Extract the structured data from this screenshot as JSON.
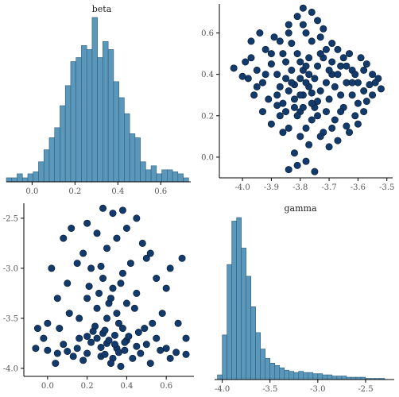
{
  "chart_data": [
    {
      "id": "beta-hist",
      "type": "histogram",
      "title": "beta",
      "xlim": [
        -0.12,
        0.74
      ],
      "x_ticks": [
        0.0,
        0.2,
        0.4,
        0.6
      ],
      "x_tick_labels": [
        "0.0",
        "0.2",
        "0.4",
        "0.6"
      ],
      "bin_start": -0.12,
      "bin_width": 0.025,
      "counts": [
        2,
        2,
        4,
        2,
        4,
        5,
        10,
        16,
        22,
        27,
        38,
        48,
        60,
        62,
        68,
        66,
        82,
        62,
        70,
        66,
        50,
        42,
        34,
        24,
        22,
        10,
        6,
        8,
        4,
        6,
        6,
        5,
        4,
        2
      ]
    },
    {
      "id": "beta-gamma-scatter",
      "type": "scatter",
      "x_variable": "gamma",
      "y_variable": "beta",
      "xlim": [
        -4.08,
        -3.48
      ],
      "ylim": [
        -0.1,
        0.74
      ],
      "x_ticks": [
        -4.0,
        -3.9,
        -3.8,
        -3.7,
        -3.6,
        -3.5
      ],
      "x_tick_labels": [
        "-4.0",
        "-3.9",
        "-3.8",
        "-3.7",
        "-3.6",
        "-3.5"
      ],
      "y_ticks": [
        0.0,
        0.2,
        0.4,
        0.6
      ],
      "y_tick_labels": [
        "0.0",
        "0.2",
        "0.4",
        "0.6"
      ],
      "points": [
        [
          -3.82,
          0.35
        ],
        [
          -3.76,
          0.31
        ],
        [
          -3.79,
          0.42
        ],
        [
          -3.74,
          0.27
        ],
        [
          -3.85,
          0.38
        ],
        [
          -3.71,
          0.36
        ],
        [
          -3.8,
          0.22
        ],
        [
          -3.77,
          0.48
        ],
        [
          -3.88,
          0.3
        ],
        [
          -3.69,
          0.4
        ],
        [
          -3.83,
          0.55
        ],
        [
          -3.78,
          0.6
        ],
        [
          -3.81,
          0.68
        ],
        [
          -3.79,
          0.72
        ],
        [
          -3.76,
          0.7
        ],
        [
          -3.84,
          0.64
        ],
        [
          -3.73,
          0.58
        ],
        [
          -3.86,
          0.5
        ],
        [
          -3.9,
          0.45
        ],
        [
          -3.95,
          0.42
        ],
        [
          -3.98,
          0.38
        ],
        [
          -4.03,
          0.43
        ],
        [
          -3.99,
          0.46
        ],
        [
          -3.93,
          0.36
        ],
        [
          -3.91,
          0.28
        ],
        [
          -3.96,
          0.3
        ],
        [
          -3.87,
          0.2
        ],
        [
          -3.84,
          0.14
        ],
        [
          -3.8,
          0.1
        ],
        [
          -3.77,
          0.06
        ],
        [
          -3.82,
          0.02
        ],
        [
          -3.78,
          -0.02
        ],
        [
          -3.81,
          -0.04
        ],
        [
          -3.75,
          -0.07
        ],
        [
          -3.84,
          -0.06
        ],
        [
          -3.72,
          0.12
        ],
        [
          -3.68,
          0.18
        ],
        [
          -3.65,
          0.24
        ],
        [
          -3.62,
          0.3
        ],
        [
          -3.6,
          0.36
        ],
        [
          -3.58,
          0.42
        ],
        [
          -3.55,
          0.4
        ],
        [
          -3.52,
          0.33
        ],
        [
          -3.53,
          0.38
        ],
        [
          -3.57,
          0.27
        ],
        [
          -3.61,
          0.2
        ],
        [
          -3.64,
          0.15
        ],
        [
          -3.67,
          0.08
        ],
        [
          -3.7,
          0.05
        ],
        [
          -3.66,
          0.44
        ],
        [
          -3.63,
          0.5
        ],
        [
          -3.69,
          0.55
        ],
        [
          -3.72,
          0.62
        ],
        [
          -3.74,
          0.66
        ],
        [
          -3.71,
          0.52
        ],
        [
          -3.89,
          0.58
        ],
        [
          -3.92,
          0.52
        ],
        [
          -3.94,
          0.6
        ],
        [
          -3.97,
          0.56
        ],
        [
          -3.9,
          0.16
        ],
        [
          -3.93,
          0.22
        ],
        [
          -3.86,
          0.26
        ],
        [
          -3.88,
          0.4
        ],
        [
          -3.85,
          0.46
        ],
        [
          -3.81,
          0.5
        ],
        [
          -3.78,
          0.44
        ],
        [
          -3.75,
          0.38
        ],
        [
          -3.73,
          0.32
        ],
        [
          -3.7,
          0.28
        ],
        [
          -3.68,
          0.34
        ],
        [
          -3.66,
          0.3
        ],
        [
          -3.64,
          0.36
        ],
        [
          -3.62,
          0.42
        ],
        [
          -3.6,
          0.26
        ],
        [
          -3.58,
          0.32
        ],
        [
          -3.56,
          0.35
        ],
        [
          -3.76,
          0.18
        ],
        [
          -3.79,
          0.24
        ],
        [
          -3.82,
          0.28
        ],
        [
          -3.84,
          0.32
        ],
        [
          -3.87,
          0.34
        ],
        [
          -3.83,
          0.42
        ],
        [
          -3.8,
          0.38
        ],
        [
          -3.77,
          0.34
        ],
        [
          -3.74,
          0.44
        ],
        [
          -3.72,
          0.48
        ],
        [
          -3.69,
          0.46
        ],
        [
          -3.67,
          0.4
        ],
        [
          -3.65,
          0.48
        ],
        [
          -3.62,
          0.36
        ],
        [
          -3.79,
          0.3
        ],
        [
          -3.81,
          0.2
        ],
        [
          -3.75,
          0.24
        ],
        [
          -3.71,
          0.22
        ],
        [
          -3.69,
          0.14
        ],
        [
          -3.73,
          0.1
        ],
        [
          -3.86,
          0.12
        ],
        [
          -3.92,
          0.4
        ],
        [
          -3.95,
          0.34
        ],
        [
          -4.0,
          0.39
        ],
        [
          -3.97,
          0.48
        ],
        [
          -3.9,
          0.5
        ],
        [
          -3.87,
          0.56
        ],
        [
          -3.84,
          0.6
        ],
        [
          -3.79,
          0.64
        ],
        [
          -3.76,
          0.56
        ],
        [
          -3.73,
          0.5
        ],
        [
          -3.7,
          0.42
        ],
        [
          -3.67,
          0.52
        ],
        [
          -3.64,
          0.44
        ],
        [
          -3.61,
          0.4
        ],
        [
          -3.59,
          0.48
        ],
        [
          -3.57,
          0.45
        ],
        [
          -3.54,
          0.36
        ],
        [
          -3.55,
          0.3
        ],
        [
          -3.58,
          0.22
        ],
        [
          -3.6,
          0.16
        ],
        [
          -3.63,
          0.12
        ],
        [
          -3.66,
          0.22
        ],
        [
          -3.78,
          0.14
        ],
        [
          -3.8,
          0.3
        ],
        [
          -3.78,
          0.36
        ],
        [
          -3.76,
          0.26
        ],
        [
          -3.74,
          0.2
        ],
        [
          -3.82,
          0.24
        ],
        [
          -3.85,
          0.22
        ],
        [
          -3.88,
          0.25
        ],
        [
          -3.83,
          0.36
        ],
        [
          -3.8,
          0.46
        ],
        [
          -3.77,
          0.4
        ]
      ]
    },
    {
      "id": "gamma-beta-scatter",
      "type": "scatter",
      "x_variable": "beta",
      "y_variable": "gamma",
      "xlim": [
        -0.12,
        0.74
      ],
      "ylim": [
        -4.08,
        -2.35
      ],
      "x_ticks": [
        0.0,
        0.2,
        0.4,
        0.6
      ],
      "x_tick_labels": [
        "0.0",
        "0.2",
        "0.4",
        "0.6"
      ],
      "y_ticks": [
        -4.0,
        -3.5,
        -3.0,
        -2.5
      ],
      "y_tick_labels": [
        "-4.0",
        "-3.5",
        "-3.0",
        "-2.5"
      ],
      "points": [
        [
          0.3,
          -3.75
        ],
        [
          0.35,
          -3.8
        ],
        [
          0.25,
          -3.7
        ],
        [
          0.4,
          -3.72
        ],
        [
          0.2,
          -3.85
        ],
        [
          0.45,
          -3.78
        ],
        [
          0.33,
          -3.9
        ],
        [
          0.28,
          -3.65
        ],
        [
          0.38,
          -3.6
        ],
        [
          0.22,
          -3.74
        ],
        [
          0.15,
          -3.8
        ],
        [
          0.5,
          -3.76
        ],
        [
          0.1,
          -3.83
        ],
        [
          0.55,
          -3.7
        ],
        [
          0.05,
          -3.85
        ],
        [
          0.6,
          -3.8
        ],
        [
          0.0,
          -3.82
        ],
        [
          0.65,
          -3.84
        ],
        [
          0.7,
          -3.86
        ],
        [
          -0.06,
          -3.8
        ],
        [
          0.3,
          -3.5
        ],
        [
          0.35,
          -3.45
        ],
        [
          0.25,
          -3.4
        ],
        [
          0.4,
          -3.35
        ],
        [
          0.2,
          -3.3
        ],
        [
          0.45,
          -3.25
        ],
        [
          0.33,
          -3.2
        ],
        [
          0.28,
          -3.1
        ],
        [
          0.38,
          -3.05
        ],
        [
          0.22,
          -3.0
        ],
        [
          0.15,
          -2.95
        ],
        [
          0.5,
          -2.9
        ],
        [
          0.1,
          -3.15
        ],
        [
          0.55,
          -3.1
        ],
        [
          0.05,
          -3.3
        ],
        [
          0.6,
          -3.2
        ],
        [
          0.3,
          -2.8
        ],
        [
          0.35,
          -2.7
        ],
        [
          0.25,
          -2.65
        ],
        [
          0.4,
          -2.6
        ],
        [
          0.2,
          -2.55
        ],
        [
          0.45,
          -2.5
        ],
        [
          0.33,
          -2.45
        ],
        [
          0.28,
          -2.4
        ],
        [
          0.38,
          -2.42
        ],
        [
          0.12,
          -2.6
        ],
        [
          0.48,
          -2.75
        ],
        [
          0.52,
          -2.85
        ],
        [
          0.18,
          -2.85
        ],
        [
          0.08,
          -2.7
        ],
        [
          0.02,
          -3.0
        ],
        [
          0.62,
          -3.0
        ],
        [
          0.68,
          -2.9
        ],
        [
          -0.02,
          -3.7
        ],
        [
          -0.05,
          -3.6
        ],
        [
          0.0,
          -3.55
        ],
        [
          0.58,
          -3.45
        ],
        [
          0.66,
          -3.55
        ],
        [
          0.7,
          -3.7
        ],
        [
          0.42,
          -2.95
        ],
        [
          0.26,
          -3.25
        ],
        [
          0.31,
          -3.35
        ],
        [
          0.36,
          -3.55
        ],
        [
          0.24,
          -3.58
        ],
        [
          0.29,
          -3.62
        ],
        [
          0.34,
          -3.67
        ],
        [
          0.39,
          -3.82
        ],
        [
          0.27,
          -3.88
        ],
        [
          0.32,
          -3.95
        ],
        [
          0.37,
          -3.98
        ],
        [
          0.18,
          -3.92
        ],
        [
          0.43,
          -3.9
        ],
        [
          0.47,
          -3.85
        ],
        [
          0.13,
          -3.88
        ],
        [
          0.08,
          -3.76
        ],
        [
          0.57,
          -3.82
        ],
        [
          0.62,
          -3.9
        ],
        [
          0.04,
          -3.95
        ],
        [
          0.52,
          -3.95
        ],
        [
          0.2,
          -3.68
        ],
        [
          0.31,
          -3.72
        ],
        [
          0.27,
          -3.79
        ],
        [
          0.36,
          -3.84
        ],
        [
          0.41,
          -3.68
        ],
        [
          0.23,
          -3.63
        ],
        [
          0.46,
          -3.64
        ],
        [
          0.16,
          -3.7
        ],
        [
          0.34,
          -3.76
        ],
        [
          0.29,
          -3.86
        ],
        [
          0.39,
          -3.74
        ],
        [
          0.32,
          -3.3
        ],
        [
          0.37,
          -3.15
        ],
        [
          0.27,
          -2.98
        ],
        [
          0.21,
          -3.18
        ],
        [
          0.44,
          -3.4
        ],
        [
          0.11,
          -3.45
        ],
        [
          0.53,
          -3.55
        ],
        [
          0.16,
          -3.5
        ],
        [
          0.49,
          -3.6
        ],
        [
          0.06,
          -3.6
        ]
      ]
    },
    {
      "id": "gamma-hist",
      "type": "histogram",
      "title": "gamma",
      "xlim": [
        -4.08,
        -2.2
      ],
      "x_ticks": [
        -4.0,
        -3.5,
        -3.0,
        -2.5
      ],
      "x_tick_labels": [
        "-4.0",
        "-3.5",
        "-3.0",
        "-2.5"
      ],
      "bin_start": -4.05,
      "bin_width": 0.05,
      "counts": [
        4,
        38,
        98,
        135,
        138,
        112,
        88,
        62,
        40,
        26,
        18,
        14,
        12,
        10,
        8,
        7,
        6,
        7,
        6,
        6,
        5,
        5,
        4,
        4,
        3,
        3,
        3,
        2,
        2,
        2,
        2,
        1,
        1,
        1,
        1
      ]
    }
  ]
}
